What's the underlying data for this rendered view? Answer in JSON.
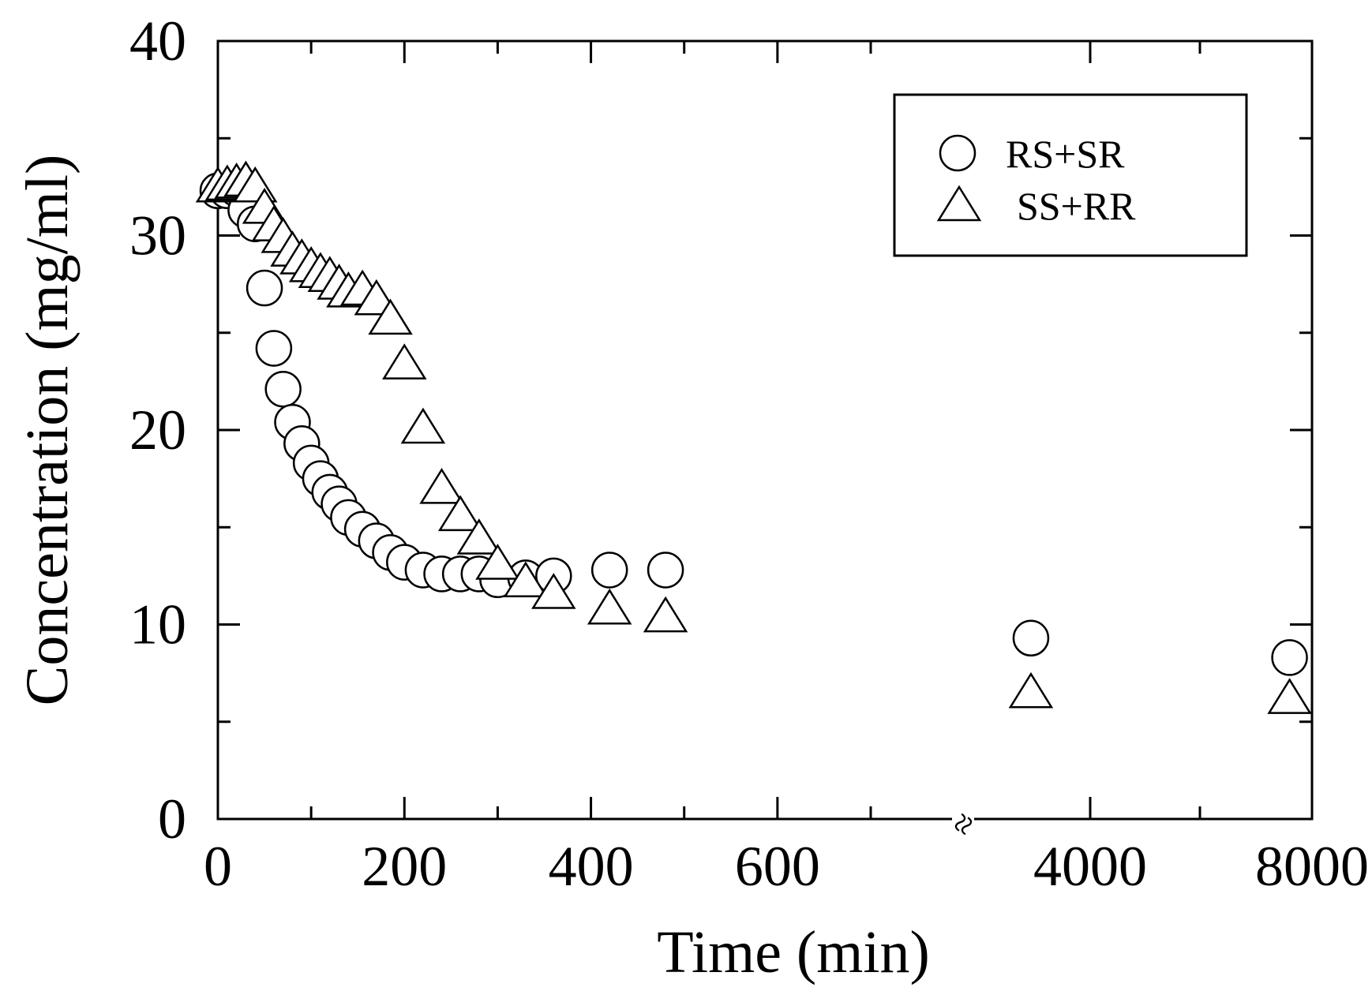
{
  "chart_data": {
    "type": "scatter",
    "title": "",
    "xlabel": "Time (min)",
    "ylabel": "Concentration (mg/ml)",
    "ylim": [
      0,
      40
    ],
    "x_axis": {
      "segments": [
        {
          "from": 0,
          "to": 700,
          "ticks": [
            0,
            200,
            400,
            600
          ],
          "minor_ticks": [
            100,
            300,
            500
          ]
        },
        {
          "from": 3000,
          "to": 4500,
          "ticks": [
            4000
          ],
          "minor_ticks": [
            3000
          ]
        },
        {
          "from": 7000,
          "to": 8000,
          "ticks": [
            8000
          ],
          "minor_ticks": [
            7000
          ]
        }
      ],
      "break_between": [
        700,
        3000
      ],
      "break_marker": "≈"
    },
    "y_ticks": [
      0,
      10,
      20,
      30,
      40
    ],
    "y_minor_ticks": [
      5,
      15,
      25,
      35
    ],
    "grid": false,
    "legend": {
      "position": "top-right"
    },
    "series": [
      {
        "name": "RS+SR",
        "marker": "circle",
        "points": [
          [
            0,
            32.3
          ],
          [
            10,
            32.3
          ],
          [
            20,
            32.4
          ],
          [
            30,
            31.3
          ],
          [
            40,
            30.6
          ],
          [
            50,
            27.3
          ],
          [
            60,
            24.2
          ],
          [
            70,
            22.1
          ],
          [
            80,
            20.4
          ],
          [
            90,
            19.3
          ],
          [
            100,
            18.3
          ],
          [
            110,
            17.5
          ],
          [
            120,
            16.8
          ],
          [
            130,
            16.2
          ],
          [
            140,
            15.5
          ],
          [
            155,
            14.9
          ],
          [
            170,
            14.3
          ],
          [
            185,
            13.7
          ],
          [
            200,
            13.2
          ],
          [
            220,
            12.8
          ],
          [
            240,
            12.6
          ],
          [
            260,
            12.6
          ],
          [
            280,
            12.6
          ],
          [
            300,
            12.3
          ],
          [
            330,
            12.4
          ],
          [
            360,
            12.5
          ],
          [
            420,
            12.8
          ],
          [
            480,
            12.8
          ],
          [
            3730,
            9.3
          ],
          [
            7800,
            8.3
          ]
        ]
      },
      {
        "name": "SS+RR",
        "marker": "triangle",
        "points": [
          [
            0,
            32.4
          ],
          [
            10,
            32.5
          ],
          [
            20,
            32.6
          ],
          [
            30,
            32.7
          ],
          [
            40,
            32.4
          ],
          [
            50,
            31.3
          ],
          [
            60,
            30.4
          ],
          [
            70,
            29.8
          ],
          [
            80,
            29.1
          ],
          [
            90,
            28.7
          ],
          [
            100,
            28.3
          ],
          [
            110,
            28.0
          ],
          [
            120,
            27.8
          ],
          [
            130,
            27.4
          ],
          [
            140,
            27.0
          ],
          [
            155,
            27.1
          ],
          [
            170,
            26.6
          ],
          [
            185,
            25.6
          ],
          [
            200,
            23.3
          ],
          [
            220,
            20.0
          ],
          [
            240,
            16.9
          ],
          [
            260,
            15.5
          ],
          [
            280,
            14.3
          ],
          [
            300,
            13.0
          ],
          [
            330,
            12.1
          ],
          [
            360,
            11.5
          ],
          [
            420,
            10.7
          ],
          [
            480,
            10.3
          ],
          [
            3730,
            6.4
          ],
          [
            7800,
            6.1
          ]
        ]
      }
    ]
  }
}
